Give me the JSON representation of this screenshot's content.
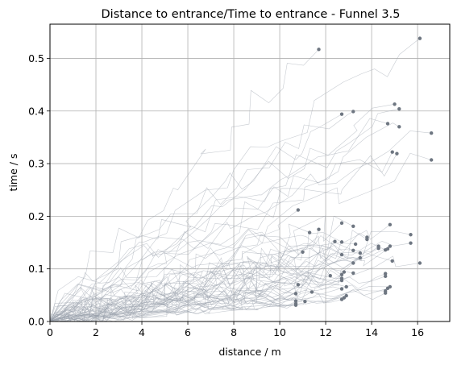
{
  "chart_data": {
    "type": "scatter",
    "title": "Distance to entrance/Time to entrance - Funnel 3.5",
    "xlabel": "distance / m",
    "ylabel": "time / s",
    "xlim": [
      0,
      17.4
    ],
    "ylim": [
      0,
      0.565
    ],
    "xticks": [
      0,
      2,
      4,
      6,
      8,
      10,
      12,
      14,
      16
    ],
    "yticks": [
      0.0,
      0.1,
      0.2,
      0.3,
      0.4,
      0.5
    ],
    "xtick_labels": [
      "0",
      "2",
      "4",
      "6",
      "8",
      "10",
      "12",
      "14",
      "16"
    ],
    "ytick_labels": [
      "0.0",
      "0.1",
      "0.2",
      "0.3",
      "0.4",
      "0.5"
    ],
    "grid": true,
    "colors": {
      "trajectory": "#9aa3ad",
      "endpoint": "#6e7681",
      "grid": "#b0b0b0",
      "axes": "#000000"
    },
    "endpoints": [
      {
        "x": 11.7,
        "y": 0.517
      },
      {
        "x": 16.1,
        "y": 0.538
      },
      {
        "x": 12.7,
        "y": 0.394
      },
      {
        "x": 13.2,
        "y": 0.399
      },
      {
        "x": 15.0,
        "y": 0.413
      },
      {
        "x": 15.2,
        "y": 0.404
      },
      {
        "x": 14.7,
        "y": 0.376
      },
      {
        "x": 15.2,
        "y": 0.37
      },
      {
        "x": 16.6,
        "y": 0.358
      },
      {
        "x": 14.9,
        "y": 0.322
      },
      {
        "x": 15.1,
        "y": 0.319
      },
      {
        "x": 16.6,
        "y": 0.307
      },
      {
        "x": 10.8,
        "y": 0.212
      },
      {
        "x": 12.7,
        "y": 0.187
      },
      {
        "x": 13.2,
        "y": 0.181
      },
      {
        "x": 14.8,
        "y": 0.184
      },
      {
        "x": 11.7,
        "y": 0.175
      },
      {
        "x": 11.3,
        "y": 0.169
      },
      {
        "x": 12.4,
        "y": 0.152
      },
      {
        "x": 12.7,
        "y": 0.151
      },
      {
        "x": 13.8,
        "y": 0.16
      },
      {
        "x": 13.8,
        "y": 0.156
      },
      {
        "x": 15.7,
        "y": 0.165
      },
      {
        "x": 15.7,
        "y": 0.149
      },
      {
        "x": 13.3,
        "y": 0.147
      },
      {
        "x": 14.3,
        "y": 0.143
      },
      {
        "x": 14.3,
        "y": 0.139
      },
      {
        "x": 14.8,
        "y": 0.143
      },
      {
        "x": 14.7,
        "y": 0.138
      },
      {
        "x": 14.6,
        "y": 0.136
      },
      {
        "x": 13.2,
        "y": 0.135
      },
      {
        "x": 13.5,
        "y": 0.13
      },
      {
        "x": 11.0,
        "y": 0.132
      },
      {
        "x": 12.7,
        "y": 0.127
      },
      {
        "x": 13.5,
        "y": 0.121
      },
      {
        "x": 14.9,
        "y": 0.115
      },
      {
        "x": 13.2,
        "y": 0.111
      },
      {
        "x": 16.1,
        "y": 0.111
      },
      {
        "x": 12.8,
        "y": 0.094
      },
      {
        "x": 12.7,
        "y": 0.089
      },
      {
        "x": 13.2,
        "y": 0.092
      },
      {
        "x": 14.6,
        "y": 0.091
      },
      {
        "x": 14.6,
        "y": 0.086
      },
      {
        "x": 12.2,
        "y": 0.087
      },
      {
        "x": 12.7,
        "y": 0.082
      },
      {
        "x": 12.7,
        "y": 0.078
      },
      {
        "x": 10.8,
        "y": 0.07
      },
      {
        "x": 12.9,
        "y": 0.066
      },
      {
        "x": 14.8,
        "y": 0.066
      },
      {
        "x": 14.7,
        "y": 0.063
      },
      {
        "x": 12.7,
        "y": 0.062
      },
      {
        "x": 14.6,
        "y": 0.058
      },
      {
        "x": 14.6,
        "y": 0.054
      },
      {
        "x": 10.7,
        "y": 0.053
      },
      {
        "x": 11.4,
        "y": 0.056
      },
      {
        "x": 12.9,
        "y": 0.049
      },
      {
        "x": 12.8,
        "y": 0.045
      },
      {
        "x": 12.7,
        "y": 0.042
      },
      {
        "x": 10.7,
        "y": 0.039
      },
      {
        "x": 11.1,
        "y": 0.038
      },
      {
        "x": 10.7,
        "y": 0.034
      },
      {
        "x": 10.7,
        "y": 0.031
      }
    ]
  }
}
